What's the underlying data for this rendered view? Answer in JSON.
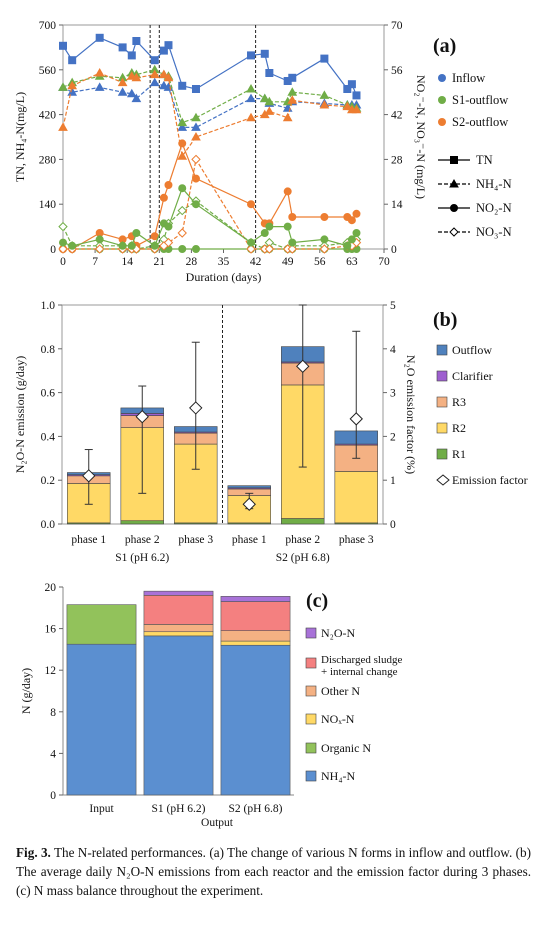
{
  "chart_data": [
    {
      "type": "line",
      "panel": "(a)",
      "xlabel": "Duration (days)",
      "ylabel": "TN, NH₄-N(mg/L)",
      "ylabel2": "NO₂⁻-N, NO₃⁻-N (mg/L)",
      "xlim": [
        0,
        70
      ],
      "ylim": [
        0,
        700
      ],
      "ylim2": [
        0,
        70
      ],
      "xticks": [
        0,
        7,
        14,
        21,
        28,
        35,
        42,
        49,
        56,
        63,
        70
      ],
      "yticks": [
        0,
        140,
        280,
        420,
        560,
        700
      ],
      "yticks2": [
        0,
        14,
        28,
        42,
        56,
        70
      ],
      "vlines": [
        19,
        21,
        42
      ],
      "colors": {
        "Inflow": "#4472c4",
        "S1-outflow": "#70ad47",
        "S2-outflow": "#ed7d31"
      },
      "legend_series": [
        "Inflow",
        "S1-outflow",
        "S2-outflow"
      ],
      "legend_styles": [
        {
          "label": "TN",
          "line": "solid",
          "marker": "square"
        },
        {
          "label": "NH₄-N",
          "line": "dashed",
          "marker": "triangle"
        },
        {
          "label": "NO₂-N",
          "line": "solid",
          "marker": "circle"
        },
        {
          "label": "NO₃-N",
          "line": "dashed",
          "marker": "diamond"
        }
      ],
      "series": [
        {
          "group": "Inflow",
          "form": "TN",
          "axis": "left",
          "x": [
            0,
            2,
            8,
            13,
            15,
            16,
            20,
            22,
            23,
            26,
            29,
            41,
            44,
            45,
            49,
            50,
            57,
            62,
            63,
            64
          ],
          "y": [
            635,
            590,
            660,
            630,
            605,
            650,
            590,
            620,
            637,
            510,
            500,
            605,
            610,
            550,
            525,
            535,
            595,
            500,
            515,
            480
          ]
        },
        {
          "group": "Inflow",
          "form": "NH₄-N",
          "axis": "left",
          "x": [
            0,
            2,
            8,
            13,
            15,
            16,
            20,
            22,
            23,
            26,
            29,
            41,
            44,
            45,
            49,
            50,
            57,
            62,
            63,
            64
          ],
          "y": [
            505,
            490,
            505,
            490,
            485,
            470,
            520,
            510,
            505,
            380,
            380,
            470,
            470,
            455,
            440,
            460,
            455,
            450,
            450,
            450
          ]
        },
        {
          "group": "S1-outflow",
          "form": "NH₄-N",
          "axis": "left",
          "x": [
            0,
            2,
            8,
            13,
            15,
            16,
            20,
            22,
            23,
            26,
            29,
            41,
            44,
            45,
            49,
            50,
            57,
            62,
            63,
            64
          ],
          "y": [
            505,
            520,
            540,
            535,
            550,
            545,
            560,
            545,
            540,
            395,
            410,
            500,
            470,
            460,
            460,
            490,
            480,
            450,
            445,
            440
          ]
        },
        {
          "group": "S1-outflow",
          "form": "NO₂-N",
          "axis": "right",
          "x": [
            0,
            2,
            8,
            13,
            15,
            16,
            20,
            22,
            23,
            26,
            29,
            41,
            44,
            45,
            49,
            50,
            57,
            62,
            63,
            64
          ],
          "y": [
            0,
            0,
            0,
            0,
            0,
            0,
            0,
            0,
            0,
            0,
            0,
            0,
            0,
            0,
            0,
            0,
            0,
            0,
            0,
            0
          ]
        },
        {
          "group": "S2-outflow",
          "form": "NH₄-N",
          "axis": "left",
          "x": [
            0,
            2,
            8,
            13,
            15,
            16,
            20,
            22,
            23,
            26,
            29,
            41,
            44,
            45,
            49,
            50,
            57,
            62,
            63,
            64
          ],
          "y": [
            380,
            510,
            550,
            520,
            540,
            535,
            545,
            545,
            535,
            290,
            350,
            410,
            420,
            430,
            410,
            465,
            450,
            445,
            435,
            435
          ]
        },
        {
          "group": "S2-outflow",
          "form": "NO₂-N",
          "axis": "right",
          "x": [
            0,
            2,
            8,
            13,
            15,
            16,
            20,
            22,
            23,
            26,
            29,
            41,
            44,
            45,
            49,
            50,
            57,
            62,
            63,
            64
          ],
          "y": [
            0,
            0,
            5,
            3,
            4,
            1,
            4,
            16,
            20,
            33,
            22,
            14,
            8,
            8,
            18,
            10,
            10,
            10,
            9,
            11
          ]
        },
        {
          "group": "S1-outflow",
          "form": "NO₃-N",
          "axis": "right",
          "x": [
            0,
            2,
            8,
            13,
            15,
            16,
            20,
            22,
            23,
            26,
            29,
            41,
            44,
            45,
            49,
            50,
            57,
            62,
            63,
            64
          ],
          "y": [
            7,
            1,
            1,
            1,
            1,
            0,
            1,
            3,
            8,
            12,
            15,
            2,
            0,
            2,
            0,
            1,
            1,
            2,
            2,
            3
          ]
        },
        {
          "group": "S2-outflow",
          "form": "NO₃-N",
          "axis": "right",
          "x": [
            0,
            2,
            8,
            13,
            15,
            16,
            20,
            22,
            23,
            26,
            29,
            41,
            44,
            45,
            49,
            50,
            57,
            62,
            63,
            64
          ],
          "y": [
            0,
            0,
            0,
            0,
            0,
            0,
            0,
            1,
            2,
            5,
            28,
            0,
            0,
            0,
            0,
            0,
            0,
            1,
            1,
            2
          ]
        },
        {
          "group": "S1-outflow",
          "form": "NO₂-N",
          "axis": "right",
          "x": [
            0,
            2,
            8,
            13,
            15,
            16,
            20,
            22,
            23,
            26,
            29,
            41,
            44,
            45,
            49,
            50,
            57,
            62,
            63,
            64
          ],
          "y": [
            2,
            1,
            3,
            1,
            1,
            5,
            1,
            8,
            7,
            19,
            14,
            2,
            5,
            7,
            7,
            2,
            3,
            1,
            3,
            5
          ]
        }
      ]
    },
    {
      "type": "bar",
      "panel": "(b)",
      "stacked": true,
      "ylabel": "N₂O-N emission (g/day)",
      "ylabel2": "N₂O emission factor (%)",
      "ylim": [
        0,
        1.0
      ],
      "ylim2": [
        0,
        5
      ],
      "yticks": [
        "0.0",
        "0.2",
        "0.4",
        "0.6",
        "0.8",
        "1.0"
      ],
      "yticks2": [
        "0",
        "1",
        "2",
        "3",
        "4",
        "5"
      ],
      "categories": [
        "phase 1",
        "phase 2",
        "phase 3",
        "phase 1",
        "phase 2",
        "phase 3"
      ],
      "groups": [
        "S1 (pH 6.2)",
        "S2 (pH 6.8)"
      ],
      "colors": {
        "R1": "#70ad47",
        "R2": "#ffd966",
        "R3": "#f4b183",
        "Clarifier": "#9e5fcf",
        "Outflow": "#4f81bd"
      },
      "legend": [
        "Outflow",
        "Clarifier",
        "R3",
        "R2",
        "R1",
        "Emission factor"
      ],
      "series": [
        {
          "name": "R1",
          "values": [
            0.005,
            0.015,
            0.005,
            0.005,
            0.025,
            0.005
          ]
        },
        {
          "name": "R2",
          "values": [
            0.18,
            0.425,
            0.36,
            0.125,
            0.61,
            0.235
          ]
        },
        {
          "name": "R3",
          "values": [
            0.035,
            0.055,
            0.05,
            0.03,
            0.1,
            0.12
          ]
        },
        {
          "name": "Clarifier",
          "values": [
            0.005,
            0.01,
            0.005,
            0.005,
            0.005,
            0.005
          ]
        },
        {
          "name": "Outflow",
          "values": [
            0.01,
            0.025,
            0.025,
            0.01,
            0.07,
            0.06
          ]
        }
      ],
      "emission_factor": {
        "name": "Emission factor",
        "values": [
          1.1,
          2.45,
          2.65,
          0.45,
          3.6,
          2.4
        ],
        "err_low": [
          0.45,
          0.7,
          1.25,
          0.35,
          1.3,
          1.5
        ],
        "err_high": [
          1.7,
          3.15,
          4.15,
          0.7,
          5.0,
          4.4
        ]
      }
    },
    {
      "type": "bar",
      "panel": "(c)",
      "stacked": true,
      "ylabel": "N (g/day)",
      "xlabel": "Output",
      "ylim": [
        0,
        20
      ],
      "yticks": [
        "0",
        "4",
        "8",
        "12",
        "16",
        "20"
      ],
      "categories": [
        "Input",
        "S1 (pH 6.2)",
        "S2 (pH 6.8)"
      ],
      "colors": {
        "NH₄-N": "#5b8fd0",
        "Organic N": "#92c25b",
        "NOₓ-N": "#ffd966",
        "Other N": "#f4b183",
        "Discharged sludge + internal change": "#f48080",
        "N₂O-N": "#a872d8"
      },
      "legend": [
        "N₂O-N",
        "Discharged sludge + internal change",
        "Other N",
        "NOₓ-N",
        "Organic N",
        "NH₄-N"
      ],
      "series": [
        {
          "name": "NH₄-N",
          "values": [
            14.5,
            15.3,
            14.4
          ]
        },
        {
          "name": "Organic N",
          "values": [
            3.8,
            0,
            0
          ]
        },
        {
          "name": "NOₓ-N",
          "values": [
            0,
            0.4,
            0.4
          ]
        },
        {
          "name": "Other N",
          "values": [
            0,
            0.7,
            1.0
          ]
        },
        {
          "name": "Discharged sludge + internal change",
          "values": [
            0,
            2.8,
            2.8
          ]
        },
        {
          "name": "N₂O-N",
          "values": [
            0,
            0.4,
            0.5
          ]
        }
      ]
    }
  ],
  "caption": {
    "label": "Fig. 3.",
    "text": " The N-related performances. (a) The change of various N forms in inflow and outflow. (b) The average daily N₂O-N emissions from each reactor and the emission factor during 3 phases. (c) N mass balance throughout the experiment."
  }
}
